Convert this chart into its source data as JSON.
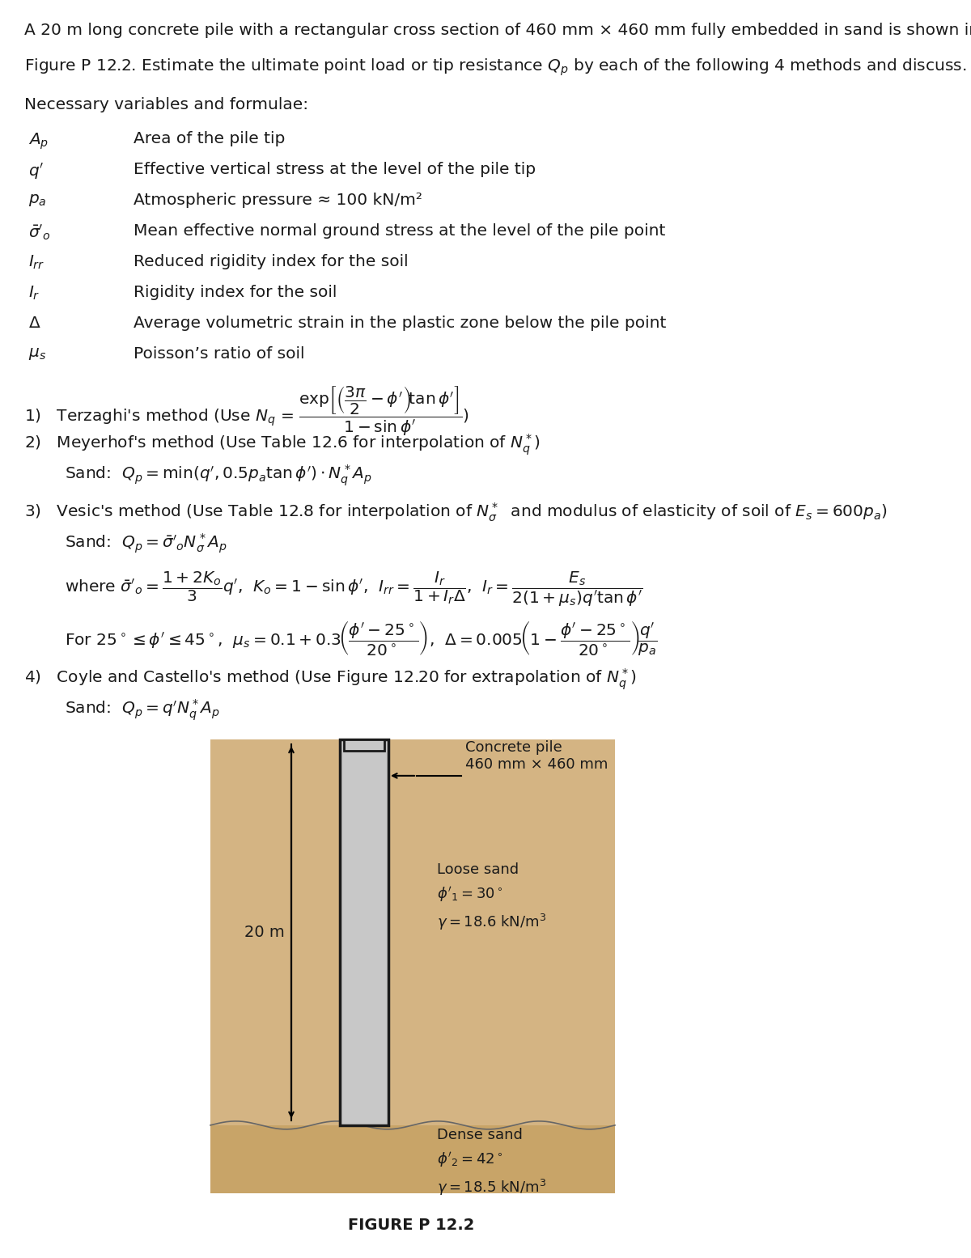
{
  "bg_color": "#ffffff",
  "text_color": "#1a1a1a",
  "intro_text": "A 20 m long concrete pile with a rectangular cross section of 460 mm × 460 mm fully embedded in sand is shown in\nFigure P 12.2. Estimate the ultimate point load or tip resistance $Q_p$ by each of the following 4 methods and discuss.",
  "variables_label": "Necessary variables and formulae:",
  "variables": [
    [
      "$A_p$",
      "Area of the pile tip"
    ],
    [
      "$q'$",
      "Effective vertical stress at the level of the pile tip"
    ],
    [
      "$p_a$",
      "Atmospheric pressure ≈ 100 kN/m²"
    ],
    [
      "$\\bar{\\sigma}'_o$",
      "Mean effective normal ground stress at the level of the pile point"
    ],
    [
      "$I_{rr}$",
      "Reduced rigidity index for the soil"
    ],
    [
      "$I_r$",
      "Rigidity index for the soil"
    ],
    [
      "$\\Delta$",
      "Average volumetric strain in the plastic zone below the pile point"
    ],
    [
      "$\\mu_s$",
      "Poisson’s ratio of soil"
    ]
  ],
  "method1_prefix": "1) Terzaghi’s method (Use $N_q$ = ",
  "method1_formula": "$\\dfrac{\\exp\\!\\left[\\left(\\dfrac{3\\pi}{2}-\\phi'\\right)\\!\\tan\\phi'\\right]}{1-\\sin\\phi'}$",
  "method1_suffix": ")",
  "method2_line": "2) Meyerhof’s method (Use Table 12.6 for interpolation of $N_q^*$)",
  "method2_sand": "Sand: $Q_p = \\min(q', 0.5p_a\\tan\\phi') \\cdot N_q^* A_p$",
  "method3_line": "3) Vesic’s method (Use Table 12.8 for interpolation of $N_\\sigma^*$  and modulus of elasticity of soil of $E_s = 600p_a$)",
  "method3_sand": "Sand: $Q_p = \\bar{\\sigma}'_o N_\\sigma^* A_p$",
  "method3_where": "where $\\bar{\\sigma}'_o = \\dfrac{1+2K_o}{3}q'$,  $K_o = 1 - \\sin\\phi'$,  $I_{rr} = \\dfrac{I_r}{1+I_r\\Delta}$,  $I_r = \\dfrac{E_s}{2(1+\\mu_s)q'\\tan\\phi'}$",
  "method3_for": "For $25^\\circ \\leq \\phi' \\leq 45^\\circ$, $\\mu_s = 0.1 + 0.3\\left(\\dfrac{\\phi'-25^\\circ}{20^\\circ}\\right)$,  $\\Delta = 0.005\\left(1 - \\dfrac{\\phi'-25^\\circ}{20^\\circ}\\right)\\dfrac{q'}{p_a}$",
  "method4_line": "4) Coyle and Castello’s method (Use Figure 12.20 for extrapolation of $N_q^*$)",
  "method4_sand": "Sand: $Q_p = q'N_q^* A_p$",
  "figure_label": "FIGURE P 12.2",
  "loose_sand_color": "#d4b483",
  "dense_sand_color": "#c8a468",
  "pile_fill_color": "#c8c8c8",
  "pile_border_color": "#1a1a1a",
  "ground_surface_color": "#c8a468",
  "loose_sand_label": "Loose sand\n$\\phi'_1 = 30^\\circ$\n$\\gamma = 18.6$ kN/m$^3$",
  "dense_sand_label": "Dense sand\n$\\phi'_2 = 42^\\circ$\n$\\gamma = 18.5$ kN/m$^3$",
  "pile_label": "Concrete pile\n460 mm × 460 mm",
  "depth_label": "20 m"
}
